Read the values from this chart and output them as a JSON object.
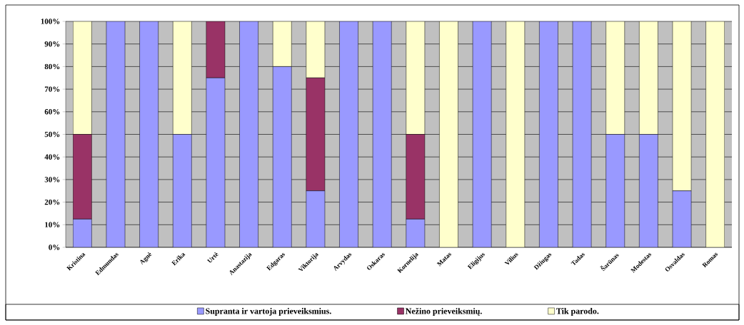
{
  "chart_data": {
    "type": "bar",
    "stacked": true,
    "categories": [
      "Kristina",
      "Edmundas",
      "Agnė",
      "Erika",
      "Urtė",
      "Anastazija",
      "Edgaras",
      "Viktorija",
      "Arvydas",
      "Oskaras",
      "Kornelija",
      "Matas",
      "Eligijus",
      "Vilius",
      "Džiugas",
      "Tadas",
      "Šarūnas",
      "Modestas",
      "Osvaldas",
      "Romas"
    ],
    "series": [
      {
        "name": "Supranta ir vartoja prieveiksmius.",
        "color": "#9999ff",
        "values": [
          12.5,
          100,
          100,
          50,
          75,
          100,
          80,
          25,
          100,
          100,
          12.5,
          0,
          100,
          0,
          100,
          100,
          50,
          50,
          25,
          0
        ]
      },
      {
        "name": "Nežino prieveiksmių.",
        "color": "#993366",
        "values": [
          37.5,
          0,
          0,
          0,
          25,
          0,
          0,
          50,
          0,
          0,
          37.5,
          0,
          0,
          0,
          0,
          0,
          0,
          0,
          0,
          0
        ]
      },
      {
        "name": "Tik parodo.",
        "color": "#ffffcc",
        "values": [
          50,
          0,
          0,
          50,
          0,
          0,
          20,
          25,
          0,
          0,
          50,
          100,
          0,
          100,
          0,
          0,
          50,
          50,
          75,
          100
        ]
      }
    ],
    "ylim": [
      0,
      100
    ],
    "yticks": [
      {
        "value": 0,
        "label": "0%"
      },
      {
        "value": 10,
        "label": "10%"
      },
      {
        "value": 20,
        "label": "20%"
      },
      {
        "value": 30,
        "label": "30%"
      },
      {
        "value": 40,
        "label": "40%"
      },
      {
        "value": 50,
        "label": "50%"
      },
      {
        "value": 60,
        "label": "60%"
      },
      {
        "value": 70,
        "label": "70%"
      },
      {
        "value": 80,
        "label": "80%"
      },
      {
        "value": 90,
        "label": "90%"
      },
      {
        "value": 100,
        "label": "100%"
      }
    ],
    "grid": "y",
    "legend": "bottom"
  }
}
